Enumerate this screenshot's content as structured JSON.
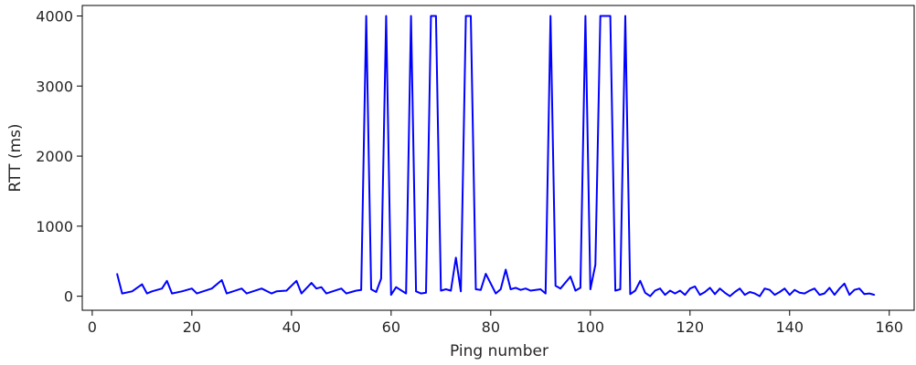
{
  "chart_data": {
    "type": "line",
    "title": "",
    "xlabel": "Ping number",
    "ylabel": "RTT (ms)",
    "xlim": [
      -2,
      165
    ],
    "ylim": [
      -200,
      4150
    ],
    "xticks": [
      0,
      20,
      40,
      60,
      80,
      100,
      120,
      140,
      160
    ],
    "yticks": [
      0,
      1000,
      2000,
      3000,
      4000
    ],
    "grid": false,
    "legend": "none",
    "series": [
      {
        "color": "#0000ff",
        "x": [
          5,
          6,
          8,
          10,
          11,
          12,
          14,
          15,
          16,
          18,
          20,
          21,
          24,
          26,
          27,
          30,
          31,
          34,
          36,
          37,
          39,
          41,
          42,
          44,
          45,
          46,
          47,
          50,
          51,
          53,
          54,
          55,
          56,
          57,
          58,
          59,
          60,
          61,
          63,
          64,
          65,
          66,
          67,
          68,
          69,
          70,
          71,
          72,
          73,
          74,
          75,
          76,
          77,
          78,
          79,
          81,
          82,
          83,
          84,
          85,
          86,
          87,
          88,
          90,
          91,
          92,
          93,
          94,
          96,
          97,
          98,
          99,
          100,
          101,
          102,
          103,
          104,
          105,
          106,
          107,
          108,
          109,
          110,
          111,
          112,
          113,
          114,
          115,
          116,
          117,
          118,
          119,
          120,
          121,
          122,
          123,
          124,
          125,
          126,
          127,
          128,
          129,
          130,
          131,
          132,
          133,
          134,
          135,
          136,
          137,
          138,
          139,
          140,
          141,
          142,
          143,
          144,
          145,
          146,
          147,
          148,
          149,
          150,
          151,
          152,
          153,
          154,
          155,
          156,
          157
        ],
        "y": [
          320,
          40,
          70,
          170,
          40,
          70,
          110,
          220,
          40,
          70,
          110,
          40,
          110,
          230,
          40,
          110,
          40,
          110,
          40,
          70,
          80,
          220,
          40,
          190,
          110,
          130,
          40,
          110,
          40,
          80,
          90,
          4000,
          100,
          60,
          250,
          4000,
          20,
          130,
          40,
          4000,
          70,
          40,
          50,
          4000,
          4000,
          80,
          100,
          80,
          550,
          70,
          4000,
          4000,
          100,
          90,
          320,
          40,
          100,
          380,
          100,
          120,
          90,
          110,
          80,
          100,
          40,
          4000,
          150,
          110,
          280,
          80,
          120,
          4000,
          100,
          450,
          4000,
          4000,
          4000,
          80,
          100,
          4000,
          30,
          80,
          220,
          50,
          0,
          80,
          110,
          20,
          80,
          40,
          80,
          20,
          110,
          140,
          20,
          60,
          120,
          30,
          110,
          50,
          0,
          60,
          110,
          20,
          60,
          40,
          0,
          110,
          90,
          20,
          60,
          110,
          20,
          90,
          50,
          40,
          80,
          110,
          20,
          40,
          120,
          20,
          110,
          180,
          20,
          90,
          110,
          30,
          40,
          20
        ]
      }
    ]
  }
}
